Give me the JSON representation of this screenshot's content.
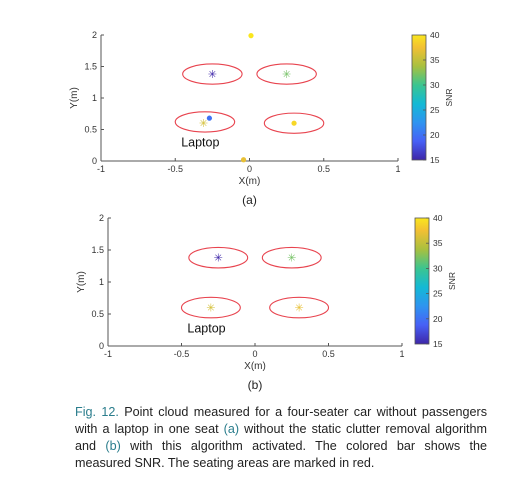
{
  "chart_data": [
    {
      "type": "scatter",
      "panel_label": "(a)",
      "xlabel": "X(m)",
      "ylabel": "Y(m)",
      "xlim": [
        -1,
        1
      ],
      "ylim": [
        0,
        2
      ],
      "x_ticks": [
        "-1",
        "-0.5",
        "0",
        "0.5",
        "1"
      ],
      "y_ticks": [
        "0",
        "0.5",
        "1",
        "1.5",
        "2"
      ],
      "annotation": "Laptop",
      "colorbar": {
        "label": "SNR",
        "range": [
          15,
          40
        ],
        "ticks": [
          "15",
          "20",
          "25",
          "30",
          "35",
          "40"
        ]
      },
      "seating_areas_color": "#e8444f",
      "seating_areas": [
        {
          "cx": -0.25,
          "cy": 1.38,
          "rx": 0.2,
          "ry": 0.16
        },
        {
          "cx": 0.25,
          "cy": 1.38,
          "rx": 0.2,
          "ry": 0.16
        },
        {
          "cx": -0.3,
          "cy": 0.62,
          "rx": 0.2,
          "ry": 0.16
        },
        {
          "cx": 0.3,
          "cy": 0.6,
          "rx": 0.2,
          "ry": 0.16
        }
      ],
      "points": [
        {
          "x": -0.25,
          "y": 1.38,
          "snr": 15,
          "marker": "star"
        },
        {
          "x": 0.25,
          "y": 1.38,
          "snr": 32,
          "marker": "star"
        },
        {
          "x": -0.31,
          "y": 0.6,
          "snr": 36,
          "marker": "star"
        },
        {
          "x": 0.3,
          "y": 0.6,
          "snr": 39,
          "marker": "dot"
        },
        {
          "x": -0.27,
          "y": 0.68,
          "snr": 20,
          "marker": "dot"
        },
        {
          "x": 0.01,
          "y": 1.99,
          "snr": 40,
          "marker": "dot"
        },
        {
          "x": -0.04,
          "y": 0.02,
          "snr": 37,
          "marker": "dot"
        }
      ]
    },
    {
      "type": "scatter",
      "panel_label": "(b)",
      "xlabel": "X(m)",
      "ylabel": "Y(m)",
      "xlim": [
        -1,
        1
      ],
      "ylim": [
        0,
        2
      ],
      "x_ticks": [
        "-1",
        "-0.5",
        "0",
        "0.5",
        "1"
      ],
      "y_ticks": [
        "0",
        "0.5",
        "1",
        "1.5",
        "2"
      ],
      "annotation": "Laptop",
      "colorbar": {
        "label": "SNR",
        "range": [
          15,
          40
        ],
        "ticks": [
          "15",
          "20",
          "25",
          "30",
          "35",
          "40"
        ]
      },
      "seating_areas_color": "#e8444f",
      "seating_areas": [
        {
          "cx": -0.25,
          "cy": 1.38,
          "rx": 0.2,
          "ry": 0.16
        },
        {
          "cx": 0.25,
          "cy": 1.38,
          "rx": 0.2,
          "ry": 0.16
        },
        {
          "cx": -0.3,
          "cy": 0.6,
          "rx": 0.2,
          "ry": 0.16
        },
        {
          "cx": 0.3,
          "cy": 0.6,
          "rx": 0.2,
          "ry": 0.16
        }
      ],
      "points": [
        {
          "x": -0.25,
          "y": 1.38,
          "snr": 15,
          "marker": "star"
        },
        {
          "x": 0.25,
          "y": 1.38,
          "snr": 32,
          "marker": "star"
        },
        {
          "x": -0.3,
          "y": 0.6,
          "snr": 36,
          "marker": "star"
        },
        {
          "x": 0.3,
          "y": 0.6,
          "snr": 37,
          "marker": "star"
        }
      ]
    }
  ],
  "caption": {
    "fig_label": "Fig. 12.",
    "text_1": "Point cloud measured for a four-seater car without passengers with a laptop in one seat",
    "ref_a": "(a)",
    "text_2": "without the static clutter removal algorithm and",
    "ref_b": "(b)",
    "text_3": "with this algorithm activated. The colored bar shows the measured SNR. The seating areas are marked in red."
  }
}
